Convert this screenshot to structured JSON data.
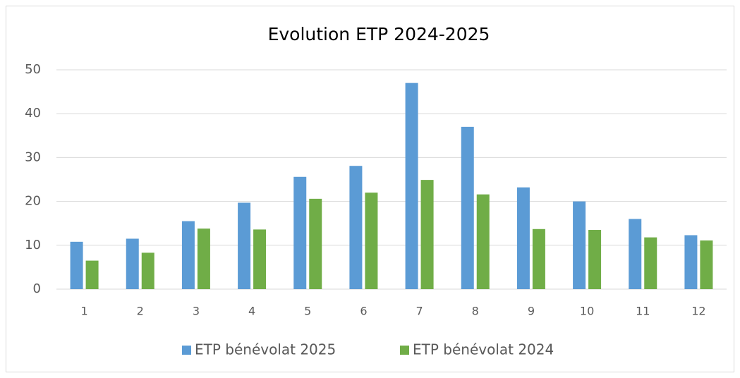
{
  "chart_data": {
    "type": "bar",
    "title": "Evolution ETP 2024-2025",
    "categories": [
      "1",
      "2",
      "3",
      "4",
      "5",
      "6",
      "7",
      "8",
      "9",
      "10",
      "11",
      "12"
    ],
    "series": [
      {
        "name": "ETP bénévolat 2025",
        "color": "#5b9bd5",
        "values": [
          10.8,
          11.5,
          15.5,
          19.7,
          25.6,
          28.1,
          47,
          37,
          23.2,
          20,
          16,
          12.3
        ]
      },
      {
        "name": "ETP bénévolat 2024",
        "color": "#70ad47",
        "values": [
          6.5,
          8.3,
          13.8,
          13.6,
          20.6,
          22,
          24.9,
          21.6,
          13.7,
          13.5,
          11.8,
          11.1
        ]
      }
    ],
    "ylim": [
      0,
      50
    ],
    "yticks": [
      0,
      10,
      20,
      30,
      40,
      50
    ],
    "grid": true,
    "legend": "bottom"
  }
}
